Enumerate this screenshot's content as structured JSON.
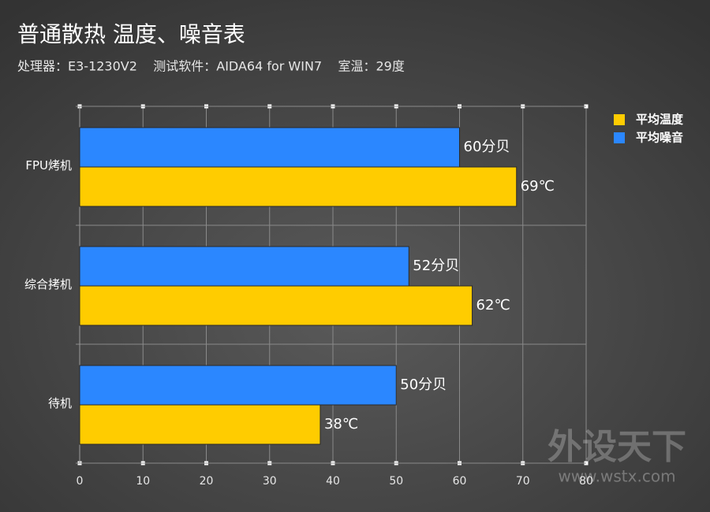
{
  "chart_data": {
    "type": "hbar",
    "title": "普通散热 温度、噪音表",
    "subtitle": "处理器：E3-1230V2    测试软件：AIDA64 for WIN7    室温：29度",
    "categories": [
      "FPU烤机",
      "综合拷机",
      "待机"
    ],
    "series": [
      {
        "name": "平均温度",
        "color": "#ffcc00",
        "values": [
          69,
          62,
          38
        ],
        "value_labels": [
          "69℃",
          "62℃",
          "38℃"
        ]
      },
      {
        "name": "平均噪音",
        "color": "#2b87ff",
        "values": [
          60,
          52,
          50
        ],
        "value_labels": [
          "60分贝",
          "52分贝",
          "50分贝"
        ]
      }
    ],
    "xlim": [
      0,
      80
    ],
    "xticks": [
      0,
      10,
      20,
      30,
      40,
      50,
      60,
      70,
      80
    ],
    "grid": true,
    "legend": "top-right",
    "watermark": "外设天下",
    "watermark_url": "www.wstx.com"
  }
}
